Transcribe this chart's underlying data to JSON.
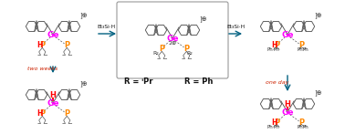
{
  "bg_color": "#ffffff",
  "box_color": "#999999",
  "ge_color": "#ff00ff",
  "p_color": "#ff8800",
  "h_color": "#ff0000",
  "arrow_color": "#006080",
  "text_two_weeks": "two weeks",
  "text_one_day": "one day",
  "text_two_weeks_color": "#cc2200",
  "text_one_day_color": "#cc2200",
  "text_R_iPr": "R = ⁱPr",
  "text_R_Ph": "R = Ph",
  "text_Et3SiH": "Et₃Si·H",
  "charge_symbol": "⊕",
  "figsize": [
    3.78,
    1.47
  ],
  "dpi": 100
}
